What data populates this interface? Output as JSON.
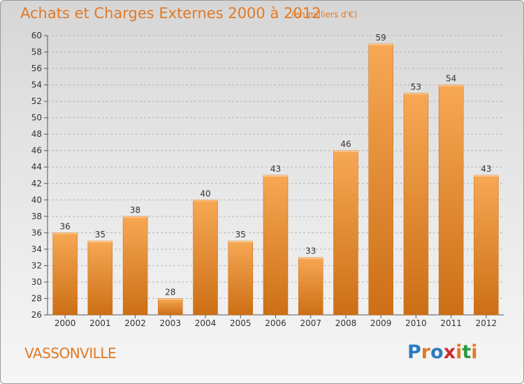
{
  "header": {
    "title": "Achats et Charges Externes 2000 à 2012",
    "unit": "(en milliers d'€)"
  },
  "footer": {
    "commune": "VASSONVILLE",
    "logo_text": "Proxiti",
    "logo_colors": [
      "#2b7bc2",
      "#e07a26",
      "#2b7bc2",
      "#cc2d2d",
      "#e07a26",
      "#2b9a44",
      "#e07a26"
    ]
  },
  "colors": {
    "bar_light": "#f7a854",
    "bar_dark": "#cc6f16",
    "text_accent": "#e07a26"
  },
  "chart_data": {
    "type": "bar",
    "categories": [
      "2000",
      "2001",
      "2002",
      "2003",
      "2004",
      "2005",
      "2006",
      "2007",
      "2008",
      "2009",
      "2010",
      "2011",
      "2012"
    ],
    "values": [
      36,
      35,
      38,
      28,
      40,
      35,
      43,
      33,
      46,
      59,
      53,
      54,
      43
    ],
    "ylim": [
      26,
      60
    ],
    "yticks": [
      26,
      28,
      30,
      32,
      34,
      36,
      38,
      40,
      42,
      44,
      46,
      48,
      50,
      52,
      54,
      56,
      58,
      60
    ],
    "grid": true,
    "data_labels": true
  }
}
